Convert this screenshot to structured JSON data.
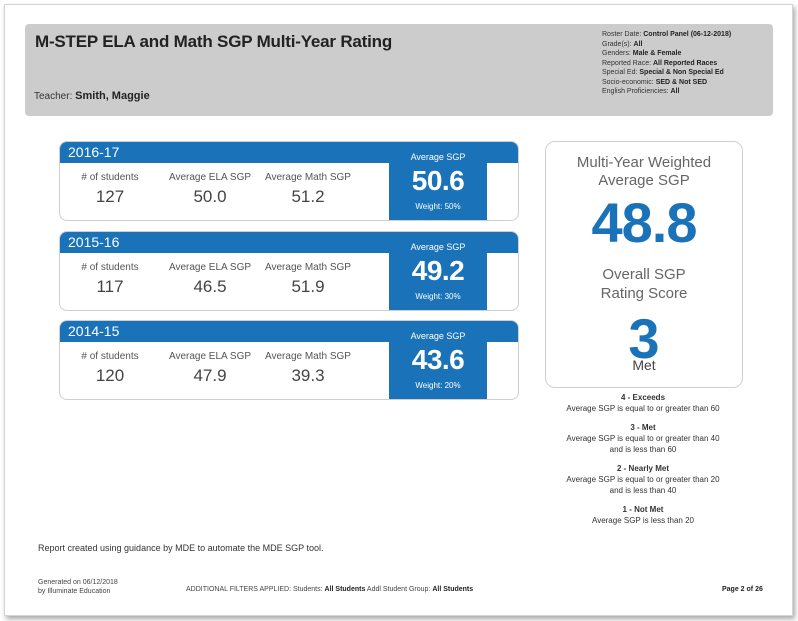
{
  "header": {
    "title": "M-STEP ELA and Math SGP Multi-Year Rating",
    "teacher_label": "Teacher:",
    "teacher_name": "Smith, Maggie",
    "filters": [
      {
        "label": "Roster Date:",
        "value": "Control Panel (06-12-2018)"
      },
      {
        "label": "Grade(s):",
        "value": "All"
      },
      {
        "label": "Genders:",
        "value": "Male & Female"
      },
      {
        "label": "Reported Race:",
        "value": "All Reported Races"
      },
      {
        "label": "Special Ed:",
        "value": "Special & Non Special Ed"
      },
      {
        "label": "Socio-economic:",
        "value": "SED & Not SED"
      },
      {
        "label": "English Proficiencies:",
        "value": "All"
      }
    ]
  },
  "years": [
    {
      "year": "2016-17",
      "students_label": "# of students",
      "students": "127",
      "ela_label": "Average ELA SGP",
      "ela": "50.0",
      "math_label": "Average Math SGP",
      "math": "51.2",
      "avg_label": "Average SGP",
      "avg": "50.6",
      "weight": "Weight: 50%"
    },
    {
      "year": "2015-16",
      "students_label": "# of students",
      "students": "117",
      "ela_label": "Average ELA SGP",
      "ela": "46.5",
      "math_label": "Average Math SGP",
      "math": "51.9",
      "avg_label": "Average SGP",
      "avg": "49.2",
      "weight": "Weight: 30%"
    },
    {
      "year": "2014-15",
      "students_label": "# of students",
      "students": "120",
      "ela_label": "Average ELA SGP",
      "ela": "47.9",
      "math_label": "Average Math SGP",
      "math": "39.3",
      "avg_label": "Average SGP",
      "avg": "43.6",
      "weight": "Weight: 20%"
    }
  ],
  "summary": {
    "weighted_title_1": "Multi-Year Weighted",
    "weighted_title_2": "Average SGP",
    "weighted_value": "48.8",
    "rating_title_1": "Overall SGP",
    "rating_title_2": "Rating Score",
    "rating_value": "3",
    "rating_label": "Met"
  },
  "legend": [
    {
      "level": "4 - Exceeds",
      "lines": [
        "Average SGP is equal to or greater than 60"
      ]
    },
    {
      "level": "3 - Met",
      "lines": [
        "Average SGP is equal to or greater than 40",
        "and is less than 60"
      ]
    },
    {
      "level": "2 - Nearly Met",
      "lines": [
        "Average SGP is equal to or greater than 20",
        "and is less than 40"
      ]
    },
    {
      "level": "1 - Not Met",
      "lines": [
        "Average SGP is less than 20"
      ]
    }
  ],
  "report_note": "Report created using guidance by MDE to automate the MDE SGP tool.",
  "footer": {
    "generated_line1": "Generated on 06/12/2018",
    "generated_line2": "by Illuminate Education",
    "filters_prefix": "ADDITIONAL FILTERS APPLIED:",
    "students_label": "Students:",
    "students_value": "All Students",
    "addl_label": "Addl Student Group:",
    "addl_value": "All Students",
    "page": "Page 2 of 26"
  },
  "colors": {
    "accent": "#1a72b9",
    "header_bg": "#cccccc"
  }
}
